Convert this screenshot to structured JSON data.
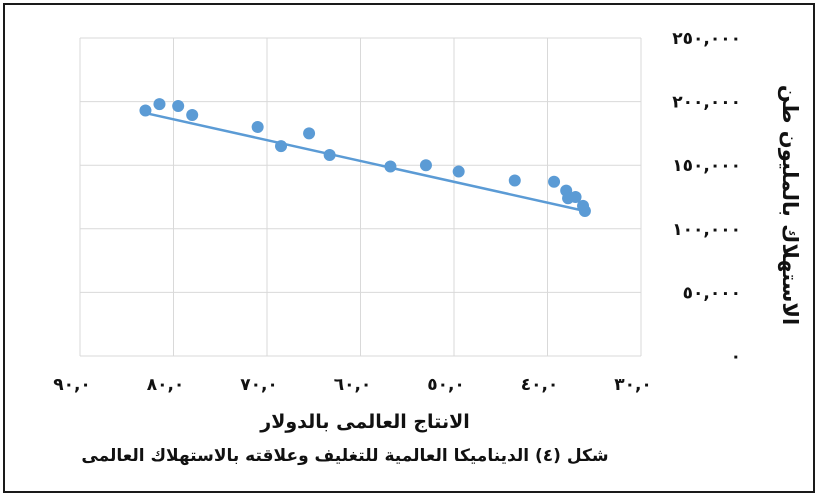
{
  "chart_data": {
    "type": "scatter",
    "xlabel": "الانتاج العالمى بالدولار",
    "ylabel": "الاستهلاك بالمليون طن",
    "xlim": [
      30,
      90
    ],
    "ylim": [
      0,
      250000
    ],
    "x_reversed": true,
    "grid": true,
    "x_ticks": [
      90,
      80,
      70,
      60,
      50,
      40,
      30
    ],
    "x_tick_labels": [
      "٩٠,٠",
      "٨٠,٠",
      "٧٠,٠",
      "٦٠,٠",
      "٥٠,٠",
      "٤٠,٠",
      "٣٠,٠"
    ],
    "y_ticks": [
      0,
      50000,
      100000,
      150000,
      200000,
      250000
    ],
    "y_tick_labels": [
      "٠",
      "٥٠,٠٠٠",
      "١٠٠,٠٠٠",
      "١٥٠,٠٠٠",
      "٢٠٠,٠٠٠",
      "٢٥٠,٠٠٠"
    ],
    "series": [
      {
        "points": [
          {
            "x": 83.0,
            "y": 193000
          },
          {
            "x": 81.5,
            "y": 198000
          },
          {
            "x": 79.5,
            "y": 196500
          },
          {
            "x": 78.0,
            "y": 189500
          },
          {
            "x": 71.0,
            "y": 180000
          },
          {
            "x": 68.5,
            "y": 165000
          },
          {
            "x": 65.5,
            "y": 175000
          },
          {
            "x": 63.3,
            "y": 158000
          },
          {
            "x": 56.8,
            "y": 149000
          },
          {
            "x": 53.0,
            "y": 150000
          },
          {
            "x": 49.5,
            "y": 145000
          },
          {
            "x": 43.5,
            "y": 138000
          },
          {
            "x": 39.3,
            "y": 137000
          },
          {
            "x": 38.0,
            "y": 130000
          },
          {
            "x": 37.8,
            "y": 124000
          },
          {
            "x": 37.0,
            "y": 125000
          },
          {
            "x": 36.2,
            "y": 118000
          },
          {
            "x": 36.0,
            "y": 114000
          }
        ],
        "color": "#5b9bd5"
      }
    ],
    "trendline": {
      "x": [
        83.0,
        36.0
      ],
      "y": [
        191000,
        114000
      ],
      "color": "#5b9bd5"
    }
  },
  "caption": {
    "line1": "شكل (٤) الديناميكا العالمية للتغليف وعلاقته بالاستهلاك العالمى",
    "line2": ""
  }
}
